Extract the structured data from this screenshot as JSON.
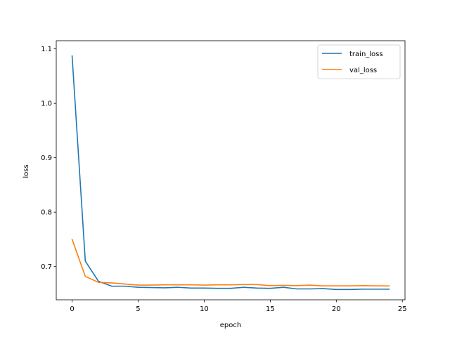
{
  "chart_data": {
    "type": "line",
    "title": "",
    "xlabel": "epoch",
    "ylabel": "loss",
    "xlim": [
      -1.2,
      25.2
    ],
    "ylim": [
      0.639,
      1.115
    ],
    "xticks": [
      0,
      5,
      10,
      15,
      20,
      25
    ],
    "yticks": [
      0.7,
      0.8,
      0.9,
      1.0,
      1.1
    ],
    "xtick_labels": [
      "0",
      "5",
      "10",
      "15",
      "20",
      "25"
    ],
    "ytick_labels": [
      "0.7",
      "0.8",
      "0.9",
      "1.0",
      "1.1"
    ],
    "grid": false,
    "legend_position": "top-right",
    "x": [
      0,
      1,
      2,
      3,
      4,
      5,
      6,
      7,
      8,
      9,
      10,
      11,
      12,
      13,
      14,
      15,
      16,
      17,
      18,
      19,
      20,
      21,
      22,
      23,
      24
    ],
    "series": [
      {
        "name": "train_loss",
        "color": "#1f77b4",
        "values": [
          1.087,
          0.71,
          0.673,
          0.664,
          0.664,
          0.662,
          0.6615,
          0.661,
          0.662,
          0.6605,
          0.6605,
          0.66,
          0.66,
          0.662,
          0.6605,
          0.66,
          0.662,
          0.659,
          0.659,
          0.6595,
          0.658,
          0.658,
          0.6585,
          0.6585,
          0.6585
        ]
      },
      {
        "name": "val_loss",
        "color": "#ff7f0e",
        "values": [
          0.75,
          0.682,
          0.671,
          0.67,
          0.668,
          0.666,
          0.666,
          0.6665,
          0.6665,
          0.6665,
          0.666,
          0.6665,
          0.6665,
          0.667,
          0.667,
          0.665,
          0.6655,
          0.665,
          0.666,
          0.6645,
          0.6645,
          0.6645,
          0.665,
          0.6645,
          0.6645
        ]
      }
    ]
  }
}
